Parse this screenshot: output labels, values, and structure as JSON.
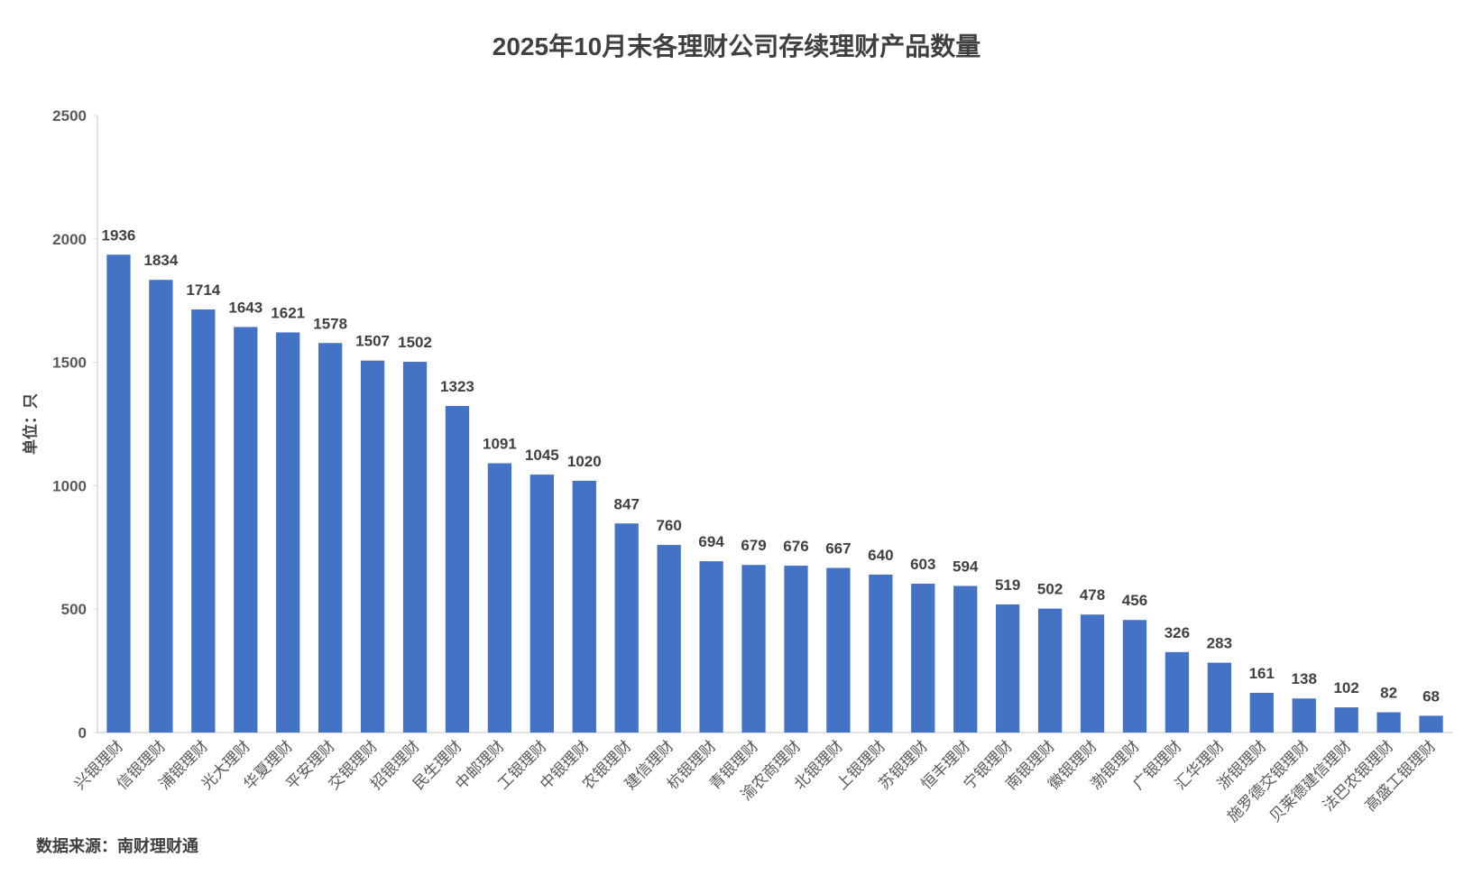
{
  "chart_data": {
    "type": "bar",
    "title": "2025年10月末各理财公司存续理财产品数量",
    "ylabel": "单位：只",
    "xlabel": "",
    "ylim": [
      0,
      2500
    ],
    "yticks": [
      0,
      500,
      1000,
      1500,
      2000,
      2500
    ],
    "grid": false,
    "legend": "none",
    "bar_color": "#4472C4",
    "categories": [
      "兴银理财",
      "信银理财",
      "浦银理财",
      "光大理财",
      "华夏理财",
      "平安理财",
      "交银理财",
      "招银理财",
      "民生理财",
      "中邮理财",
      "工银理财",
      "中银理财",
      "农银理财",
      "建信理财",
      "杭银理财",
      "青银理财",
      "渝农商理财",
      "北银理财",
      "上银理财",
      "苏银理财",
      "恒丰理财",
      "宁银理财",
      "南银理财",
      "徽银理财",
      "渤银理财",
      "广银理财",
      "汇华理财",
      "浙银理财",
      "施罗德交银理财",
      "贝莱德建信理财",
      "法巴农银理财",
      "高盛工银理财"
    ],
    "values": [
      1936,
      1834,
      1714,
      1643,
      1621,
      1578,
      1507,
      1502,
      1323,
      1091,
      1045,
      1020,
      847,
      760,
      694,
      679,
      676,
      667,
      640,
      603,
      594,
      519,
      502,
      478,
      456,
      326,
      283,
      161,
      138,
      102,
      82,
      68
    ]
  },
  "source": "数据来源：南财理财通"
}
